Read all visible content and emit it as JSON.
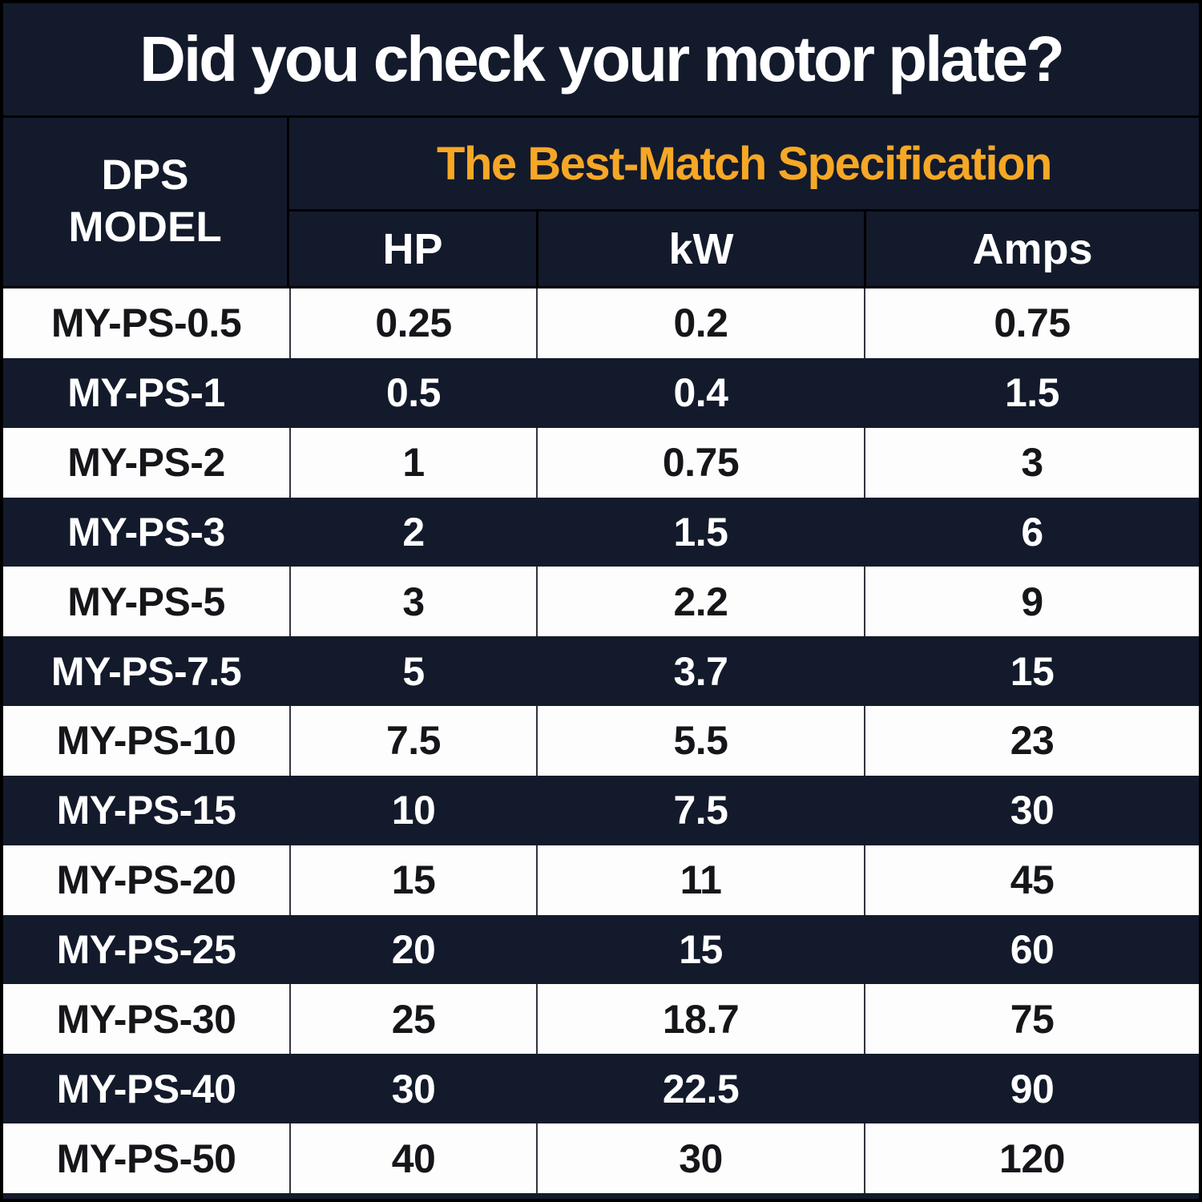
{
  "title": "Did you check your motor plate?",
  "table": {
    "model_header": "DPS\nMODEL",
    "spec_header": "The Best-Match Specification",
    "columns": [
      "HP",
      "kW",
      "Amps"
    ],
    "rows": [
      {
        "model": "MY-PS-0.5",
        "hp": "0.25",
        "kw": "0.2",
        "amps": "0.75"
      },
      {
        "model": "MY-PS-1",
        "hp": "0.5",
        "kw": "0.4",
        "amps": "1.5"
      },
      {
        "model": "MY-PS-2",
        "hp": "1",
        "kw": "0.75",
        "amps": "3"
      },
      {
        "model": "MY-PS-3",
        "hp": "2",
        "kw": "1.5",
        "amps": "6"
      },
      {
        "model": "MY-PS-5",
        "hp": "3",
        "kw": "2.2",
        "amps": "9"
      },
      {
        "model": "MY-PS-7.5",
        "hp": "5",
        "kw": "3.7",
        "amps": "15"
      },
      {
        "model": "MY-PS-10",
        "hp": "7.5",
        "kw": "5.5",
        "amps": "23"
      },
      {
        "model": "MY-PS-15",
        "hp": "10",
        "kw": "7.5",
        "amps": "30"
      },
      {
        "model": "MY-PS-20",
        "hp": "15",
        "kw": "11",
        "amps": "45"
      },
      {
        "model": "MY-PS-25",
        "hp": "20",
        "kw": "15",
        "amps": "60"
      },
      {
        "model": "MY-PS-30",
        "hp": "25",
        "kw": "18.7",
        "amps": "75"
      },
      {
        "model": "MY-PS-40",
        "hp": "30",
        "kw": "22.5",
        "amps": "90"
      },
      {
        "model": "MY-PS-50",
        "hp": "40",
        "kw": "30",
        "amps": "120"
      }
    ]
  },
  "colors": {
    "navy_background": "#131a2b",
    "accent_orange": "#f6a726",
    "row_light": "#fdfdfd",
    "text_on_dark": "#ffffff",
    "text_on_light": "#15161a",
    "grid_line": "#000000"
  },
  "chart_data": {
    "type": "table",
    "title": "Did you check your motor plate?",
    "group_header": "The Best-Match Specification",
    "columns": [
      "DPS MODEL",
      "HP",
      "kW",
      "Amps"
    ],
    "rows": [
      [
        "MY-PS-0.5",
        "0.25",
        "0.2",
        "0.75"
      ],
      [
        "MY-PS-1",
        "0.5",
        "0.4",
        "1.5"
      ],
      [
        "MY-PS-2",
        "1",
        "0.75",
        "3"
      ],
      [
        "MY-PS-3",
        "2",
        "1.5",
        "6"
      ],
      [
        "MY-PS-5",
        "3",
        "2.2",
        "9"
      ],
      [
        "MY-PS-7.5",
        "5",
        "3.7",
        "15"
      ],
      [
        "MY-PS-10",
        "7.5",
        "5.5",
        "23"
      ],
      [
        "MY-PS-15",
        "10",
        "7.5",
        "30"
      ],
      [
        "MY-PS-20",
        "15",
        "11",
        "45"
      ],
      [
        "MY-PS-25",
        "20",
        "15",
        "60"
      ],
      [
        "MY-PS-30",
        "25",
        "18.7",
        "75"
      ],
      [
        "MY-PS-40",
        "30",
        "22.5",
        "90"
      ],
      [
        "MY-PS-50",
        "40",
        "30",
        "120"
      ]
    ]
  }
}
